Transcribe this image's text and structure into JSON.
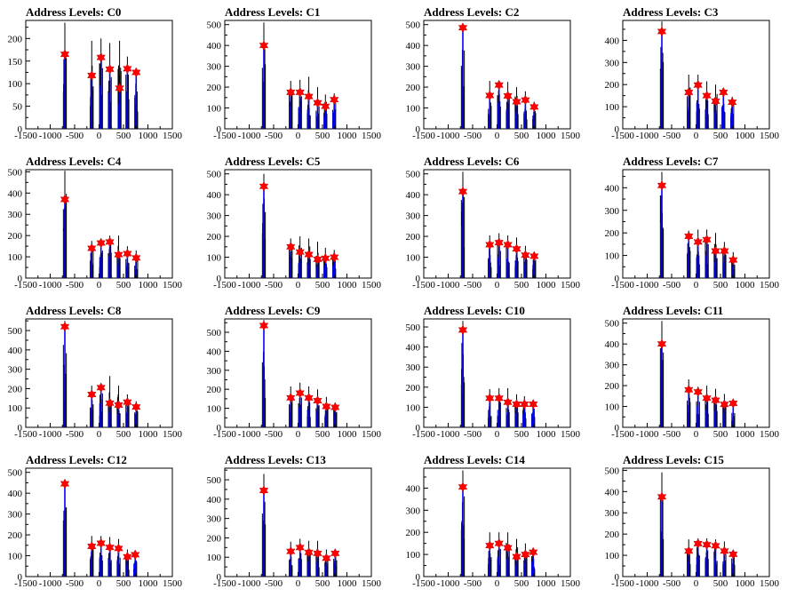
{
  "colors": {
    "histogram_black": "#000000",
    "fit_blue": "#0000ff",
    "marker_red": "#ff0000"
  },
  "chart_data": [
    {
      "type": "bar",
      "title": "Address Levels: C0",
      "xlim": [
        -1500,
        1500
      ],
      "ylim": [
        0,
        240
      ],
      "yticks": [
        0,
        50,
        100,
        150,
        200
      ],
      "xticks": [
        -1500,
        -1000,
        -500,
        0,
        500,
        1000,
        1500
      ],
      "grid": false,
      "peaks": [
        {
          "x": -700,
          "hist": 235,
          "fit": 165,
          "marker": 165
        },
        {
          "x": -150,
          "hist": 195,
          "fit": 118,
          "marker": 118
        },
        {
          "x": 40,
          "hist": 200,
          "fit": 158,
          "marker": 158
        },
        {
          "x": 220,
          "hist": 190,
          "fit": 132,
          "marker": 132
        },
        {
          "x": 420,
          "hist": 195,
          "fit": 90,
          "marker": 90
        },
        {
          "x": 580,
          "hist": 160,
          "fit": 133,
          "marker": 133
        },
        {
          "x": 760,
          "hist": 130,
          "fit": 125,
          "marker": 125
        }
      ]
    },
    {
      "type": "bar",
      "title": "Address Levels: C1",
      "xlim": [
        -1500,
        1500
      ],
      "ylim": [
        0,
        520
      ],
      "yticks": [
        0,
        100,
        200,
        300,
        400,
        500
      ],
      "xticks": [
        -1500,
        -1000,
        -500,
        0,
        500,
        1000,
        1500
      ],
      "grid": false,
      "peaks": [
        {
          "x": -700,
          "hist": 510,
          "fit": 400,
          "marker": 400
        },
        {
          "x": -150,
          "hist": 230,
          "fit": 175,
          "marker": 175
        },
        {
          "x": 40,
          "hist": 235,
          "fit": 175,
          "marker": 175
        },
        {
          "x": 220,
          "hist": 250,
          "fit": 155,
          "marker": 155
        },
        {
          "x": 400,
          "hist": 200,
          "fit": 125,
          "marker": 125
        },
        {
          "x": 560,
          "hist": 165,
          "fit": 108,
          "marker": 108
        },
        {
          "x": 740,
          "hist": 170,
          "fit": 140,
          "marker": 140
        }
      ]
    },
    {
      "type": "bar",
      "title": "Address Levels: C2",
      "xlim": [
        -1500,
        1500
      ],
      "ylim": [
        0,
        520
      ],
      "yticks": [
        0,
        100,
        200,
        300,
        400,
        500
      ],
      "xticks": [
        -1500,
        -1000,
        -500,
        0,
        500,
        1000,
        1500
      ],
      "grid": false,
      "peaks": [
        {
          "x": -700,
          "hist": 505,
          "fit": 485,
          "marker": 485
        },
        {
          "x": -150,
          "hist": 230,
          "fit": 160,
          "marker": 160
        },
        {
          "x": 40,
          "hist": 230,
          "fit": 210,
          "marker": 210
        },
        {
          "x": 220,
          "hist": 225,
          "fit": 158,
          "marker": 158
        },
        {
          "x": 400,
          "hist": 200,
          "fit": 130,
          "marker": 130
        },
        {
          "x": 580,
          "hist": 180,
          "fit": 138,
          "marker": 138
        },
        {
          "x": 760,
          "hist": 130,
          "fit": 105,
          "marker": 105
        }
      ]
    },
    {
      "type": "bar",
      "title": "Address Levels: C3",
      "xlim": [
        -1500,
        1500
      ],
      "ylim": [
        0,
        490
      ],
      "yticks": [
        0,
        100,
        200,
        300,
        400
      ],
      "xticks": [
        -1500,
        -1000,
        -500,
        0,
        500,
        1000,
        1500
      ],
      "grid": false,
      "peaks": [
        {
          "x": -700,
          "hist": 485,
          "fit": 440,
          "marker": 440
        },
        {
          "x": -150,
          "hist": 245,
          "fit": 165,
          "marker": 165
        },
        {
          "x": 40,
          "hist": 245,
          "fit": 198,
          "marker": 198
        },
        {
          "x": 220,
          "hist": 215,
          "fit": 150,
          "marker": 150
        },
        {
          "x": 400,
          "hist": 200,
          "fit": 125,
          "marker": 125
        },
        {
          "x": 560,
          "hist": 170,
          "fit": 165,
          "marker": 165
        },
        {
          "x": 740,
          "hist": 145,
          "fit": 120,
          "marker": 120
        }
      ]
    },
    {
      "type": "bar",
      "title": "Address Levels: C4",
      "xlim": [
        -1500,
        1500
      ],
      "ylim": [
        0,
        510
      ],
      "yticks": [
        0,
        100,
        200,
        300,
        400,
        500
      ],
      "xticks": [
        -1500,
        -1000,
        -500,
        0,
        500,
        1000,
        1500
      ],
      "grid": false,
      "peaks": [
        {
          "x": -700,
          "hist": 505,
          "fit": 370,
          "marker": 370
        },
        {
          "x": -150,
          "hist": 175,
          "fit": 140,
          "marker": 140
        },
        {
          "x": 40,
          "hist": 180,
          "fit": 165,
          "marker": 165
        },
        {
          "x": 220,
          "hist": 200,
          "fit": 170,
          "marker": 170
        },
        {
          "x": 400,
          "hist": 200,
          "fit": 110,
          "marker": 110
        },
        {
          "x": 580,
          "hist": 150,
          "fit": 115,
          "marker": 115
        },
        {
          "x": 760,
          "hist": 130,
          "fit": 95,
          "marker": 95
        }
      ]
    },
    {
      "type": "bar",
      "title": "Address Levels: C5",
      "xlim": [
        -1500,
        1500
      ],
      "ylim": [
        0,
        520
      ],
      "yticks": [
        0,
        100,
        200,
        300,
        400,
        500
      ],
      "xticks": [
        -1500,
        -1000,
        -500,
        0,
        500,
        1000,
        1500
      ],
      "grid": false,
      "peaks": [
        {
          "x": -700,
          "hist": 500,
          "fit": 440,
          "marker": 440
        },
        {
          "x": -150,
          "hist": 190,
          "fit": 150,
          "marker": 150
        },
        {
          "x": 40,
          "hist": 200,
          "fit": 125,
          "marker": 125
        },
        {
          "x": 220,
          "hist": 190,
          "fit": 113,
          "marker": 113
        },
        {
          "x": 400,
          "hist": 175,
          "fit": 90,
          "marker": 90
        },
        {
          "x": 560,
          "hist": 145,
          "fit": 95,
          "marker": 95
        },
        {
          "x": 740,
          "hist": 135,
          "fit": 100,
          "marker": 100
        }
      ]
    },
    {
      "type": "bar",
      "title": "Address Levels: C6",
      "xlim": [
        -1500,
        1500
      ],
      "ylim": [
        0,
        520
      ],
      "yticks": [
        0,
        100,
        200,
        300,
        400,
        500
      ],
      "xticks": [
        -1500,
        -1000,
        -500,
        0,
        500,
        1000,
        1500
      ],
      "grid": false,
      "peaks": [
        {
          "x": -700,
          "hist": 510,
          "fit": 415,
          "marker": 415
        },
        {
          "x": -150,
          "hist": 205,
          "fit": 160,
          "marker": 160
        },
        {
          "x": 40,
          "hist": 215,
          "fit": 170,
          "marker": 170
        },
        {
          "x": 220,
          "hist": 205,
          "fit": 160,
          "marker": 160
        },
        {
          "x": 400,
          "hist": 195,
          "fit": 140,
          "marker": 140
        },
        {
          "x": 580,
          "hist": 155,
          "fit": 110,
          "marker": 110
        },
        {
          "x": 760,
          "hist": 125,
          "fit": 105,
          "marker": 105
        }
      ]
    },
    {
      "type": "bar",
      "title": "Address Levels: C7",
      "xlim": [
        -1500,
        1500
      ],
      "ylim": [
        0,
        480
      ],
      "yticks": [
        0,
        100,
        200,
        300,
        400
      ],
      "xticks": [
        -1500,
        -1000,
        -500,
        0,
        500,
        1000,
        1500
      ],
      "grid": false,
      "peaks": [
        {
          "x": -700,
          "hist": 470,
          "fit": 410,
          "marker": 410
        },
        {
          "x": -150,
          "hist": 210,
          "fit": 185,
          "marker": 185
        },
        {
          "x": 40,
          "hist": 215,
          "fit": 160,
          "marker": 160
        },
        {
          "x": 220,
          "hist": 215,
          "fit": 170,
          "marker": 170
        },
        {
          "x": 400,
          "hist": 200,
          "fit": 120,
          "marker": 120
        },
        {
          "x": 580,
          "hist": 160,
          "fit": 120,
          "marker": 120
        },
        {
          "x": 760,
          "hist": 115,
          "fit": 80,
          "marker": 80
        }
      ]
    },
    {
      "type": "bar",
      "title": "Address Levels: C8",
      "xlim": [
        -1500,
        1500
      ],
      "ylim": [
        0,
        560
      ],
      "yticks": [
        0,
        100,
        200,
        300,
        400,
        500
      ],
      "xticks": [
        -1500,
        -1000,
        -500,
        0,
        500,
        1000,
        1500
      ],
      "grid": false,
      "peaks": [
        {
          "x": -700,
          "hist": 550,
          "fit": 520,
          "marker": 520
        },
        {
          "x": -150,
          "hist": 215,
          "fit": 170,
          "marker": 170
        },
        {
          "x": 40,
          "hist": 225,
          "fit": 205,
          "marker": 205
        },
        {
          "x": 220,
          "hist": 265,
          "fit": 125,
          "marker": 125
        },
        {
          "x": 400,
          "hist": 215,
          "fit": 115,
          "marker": 115
        },
        {
          "x": 580,
          "hist": 170,
          "fit": 130,
          "marker": 130
        },
        {
          "x": 760,
          "hist": 135,
          "fit": 105,
          "marker": 105
        }
      ]
    },
    {
      "type": "bar",
      "title": "Address Levels: C9",
      "xlim": [
        -1500,
        1500
      ],
      "ylim": [
        0,
        570
      ],
      "yticks": [
        0,
        100,
        200,
        300,
        400,
        500
      ],
      "xticks": [
        -1500,
        -1000,
        -500,
        0,
        500,
        1000,
        1500
      ],
      "grid": false,
      "peaks": [
        {
          "x": -700,
          "hist": 565,
          "fit": 535,
          "marker": 535
        },
        {
          "x": -150,
          "hist": 215,
          "fit": 155,
          "marker": 155
        },
        {
          "x": 40,
          "hist": 235,
          "fit": 180,
          "marker": 180
        },
        {
          "x": 220,
          "hist": 215,
          "fit": 155,
          "marker": 155
        },
        {
          "x": 400,
          "hist": 200,
          "fit": 140,
          "marker": 140
        },
        {
          "x": 580,
          "hist": 160,
          "fit": 110,
          "marker": 110
        },
        {
          "x": 760,
          "hist": 130,
          "fit": 105,
          "marker": 105
        }
      ]
    },
    {
      "type": "bar",
      "title": "Address Levels: C10",
      "xlim": [
        -1500,
        1500
      ],
      "ylim": [
        0,
        540
      ],
      "yticks": [
        0,
        100,
        200,
        300,
        400,
        500
      ],
      "xticks": [
        -1500,
        -1000,
        -500,
        0,
        500,
        1000,
        1500
      ],
      "grid": false,
      "peaks": [
        {
          "x": -700,
          "hist": 530,
          "fit": 485,
          "marker": 485
        },
        {
          "x": -150,
          "hist": 190,
          "fit": 145,
          "marker": 145
        },
        {
          "x": 40,
          "hist": 195,
          "fit": 145,
          "marker": 145
        },
        {
          "x": 220,
          "hist": 195,
          "fit": 125,
          "marker": 125
        },
        {
          "x": 400,
          "hist": 165,
          "fit": 115,
          "marker": 115
        },
        {
          "x": 560,
          "hist": 155,
          "fit": 115,
          "marker": 115
        },
        {
          "x": 740,
          "hist": 130,
          "fit": 115,
          "marker": 115
        }
      ]
    },
    {
      "type": "bar",
      "title": "Address Levels: C11",
      "xlim": [
        -1500,
        1500
      ],
      "ylim": [
        0,
        520
      ],
      "yticks": [
        0,
        100,
        200,
        300,
        400,
        500
      ],
      "xticks": [
        -1500,
        -1000,
        -500,
        0,
        500,
        1000,
        1500
      ],
      "grid": false,
      "peaks": [
        {
          "x": -700,
          "hist": 510,
          "fit": 400,
          "marker": 400
        },
        {
          "x": -150,
          "hist": 230,
          "fit": 180,
          "marker": 180
        },
        {
          "x": 40,
          "hist": 195,
          "fit": 170,
          "marker": 170
        },
        {
          "x": 220,
          "hist": 200,
          "fit": 140,
          "marker": 140
        },
        {
          "x": 400,
          "hist": 185,
          "fit": 130,
          "marker": 130
        },
        {
          "x": 580,
          "hist": 160,
          "fit": 110,
          "marker": 110
        },
        {
          "x": 760,
          "hist": 120,
          "fit": 115,
          "marker": 115
        }
      ]
    },
    {
      "type": "bar",
      "title": "Address Levels: C12",
      "xlim": [
        -1500,
        1500
      ],
      "ylim": [
        0,
        520
      ],
      "yticks": [
        0,
        100,
        200,
        300,
        400,
        500
      ],
      "xticks": [
        -1500,
        -1000,
        -500,
        0,
        500,
        1000,
        1500
      ],
      "grid": false,
      "peaks": [
        {
          "x": -700,
          "hist": 460,
          "fit": 445,
          "marker": 445
        },
        {
          "x": -150,
          "hist": 195,
          "fit": 145,
          "marker": 145
        },
        {
          "x": 40,
          "hist": 195,
          "fit": 160,
          "marker": 160
        },
        {
          "x": 220,
          "hist": 190,
          "fit": 140,
          "marker": 140
        },
        {
          "x": 400,
          "hist": 180,
          "fit": 135,
          "marker": 135
        },
        {
          "x": 580,
          "hist": 130,
          "fit": 95,
          "marker": 95
        },
        {
          "x": 740,
          "hist": 110,
          "fit": 105,
          "marker": 105
        }
      ]
    },
    {
      "type": "bar",
      "title": "Address Levels: C13",
      "xlim": [
        -1500,
        1500
      ],
      "ylim": [
        0,
        560
      ],
      "yticks": [
        0,
        100,
        200,
        300,
        400,
        500
      ],
      "xticks": [
        -1500,
        -1000,
        -500,
        0,
        500,
        1000,
        1500
      ],
      "grid": false,
      "peaks": [
        {
          "x": -700,
          "hist": 530,
          "fit": 445,
          "marker": 445
        },
        {
          "x": -150,
          "hist": 180,
          "fit": 130,
          "marker": 130
        },
        {
          "x": 40,
          "hist": 195,
          "fit": 150,
          "marker": 150
        },
        {
          "x": 220,
          "hist": 185,
          "fit": 125,
          "marker": 125
        },
        {
          "x": 400,
          "hist": 185,
          "fit": 120,
          "marker": 120
        },
        {
          "x": 580,
          "hist": 140,
          "fit": 95,
          "marker": 95
        },
        {
          "x": 760,
          "hist": 135,
          "fit": 120,
          "marker": 120
        }
      ]
    },
    {
      "type": "bar",
      "title": "Address Levels: C14",
      "xlim": [
        -1500,
        1500
      ],
      "ylim": [
        0,
        490
      ],
      "yticks": [
        0,
        100,
        200,
        300,
        400
      ],
      "xticks": [
        -1500,
        -1000,
        -500,
        0,
        500,
        1000,
        1500
      ],
      "grid": false,
      "peaks": [
        {
          "x": -700,
          "hist": 480,
          "fit": 405,
          "marker": 405
        },
        {
          "x": -150,
          "hist": 200,
          "fit": 140,
          "marker": 140
        },
        {
          "x": 40,
          "hist": 200,
          "fit": 150,
          "marker": 150
        },
        {
          "x": 220,
          "hist": 200,
          "fit": 130,
          "marker": 130
        },
        {
          "x": 400,
          "hist": 170,
          "fit": 90,
          "marker": 90
        },
        {
          "x": 580,
          "hist": 150,
          "fit": 100,
          "marker": 100
        },
        {
          "x": 740,
          "hist": 120,
          "fit": 110,
          "marker": 110
        }
      ]
    },
    {
      "type": "bar",
      "title": "Address Levels: C15",
      "xlim": [
        -1500,
        1500
      ],
      "ylim": [
        0,
        510
      ],
      "yticks": [
        0,
        100,
        200,
        300,
        400,
        500
      ],
      "xticks": [
        -1500,
        -1000,
        -500,
        0,
        500,
        1000,
        1500
      ],
      "grid": false,
      "peaks": [
        {
          "x": -700,
          "hist": 490,
          "fit": 375,
          "marker": 375
        },
        {
          "x": -150,
          "hist": 175,
          "fit": 120,
          "marker": 120
        },
        {
          "x": 40,
          "hist": 180,
          "fit": 155,
          "marker": 155
        },
        {
          "x": 220,
          "hist": 180,
          "fit": 150,
          "marker": 150
        },
        {
          "x": 400,
          "hist": 175,
          "fit": 145,
          "marker": 145
        },
        {
          "x": 580,
          "hist": 165,
          "fit": 120,
          "marker": 120
        },
        {
          "x": 760,
          "hist": 125,
          "fit": 105,
          "marker": 105
        }
      ]
    }
  ]
}
